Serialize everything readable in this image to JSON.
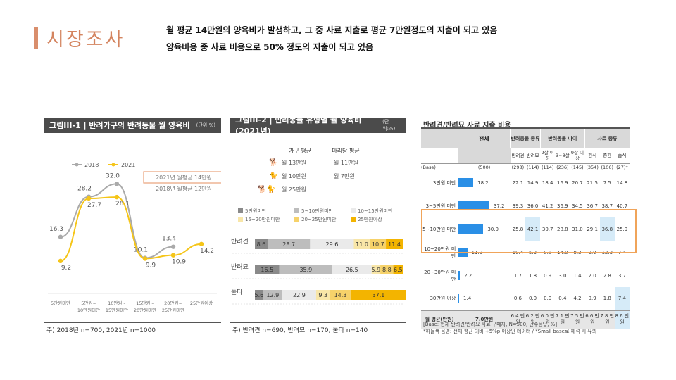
{
  "header": {
    "title": "시장조사",
    "line1": "월 평균 14만원의 양육비가 발생하고, 그 중 사료 지출로 평균 7만원정도의 지출이 되고 있음",
    "line2": "양육비용 중 사료 비용으로 50% 정도의 지출이 되고 있음"
  },
  "colors": {
    "accent": "#d4845f",
    "s2018": "#aaaaaa",
    "s2021": "#f5c518",
    "highlight": "#f0a45a",
    "bar_blue": "#2a8fe6"
  },
  "chart1": {
    "header": "그림III-1 | 반려가구의 반려동물 월 양육비",
    "unit": "(단위:%)",
    "legend": [
      "2018",
      "2021"
    ],
    "callout1": "2021년 월평균 14만원",
    "callout2": "2018년 월평균 12만원",
    "footnote": "주) 2018년 n=700, 2021년 n=1000"
  },
  "chart_data": [
    {
      "type": "line",
      "categories": [
        "5만원미만",
        "5만원~10만원미만",
        "10만원~15만원미만",
        "15만원~20만원미만",
        "20만원~25만원미만",
        "25만원이상"
      ],
      "series": [
        {
          "name": "2018",
          "values": [
            16.3,
            28.2,
            32.0,
            10.1,
            13.4,
            null
          ]
        },
        {
          "name": "2021",
          "values": [
            9.2,
            27.7,
            28.1,
            9.9,
            10.9,
            14.2
          ]
        }
      ]
    },
    {
      "type": "bar",
      "stacked": true,
      "orientation": "horizontal",
      "categories": [
        "반려견",
        "반려묘",
        "둘다"
      ],
      "series": [
        {
          "name": "5만원미만",
          "values": [
            8.6,
            16.5,
            5.6
          ]
        },
        {
          "name": "5~10만원미만",
          "values": [
            28.7,
            35.9,
            12.9
          ]
        },
        {
          "name": "10~15만원미만",
          "values": [
            29.6,
            26.5,
            22.9
          ]
        },
        {
          "name": "15~20만원미만",
          "values": [
            11.0,
            5.9,
            9.3
          ]
        },
        {
          "name": "20~25만원미만",
          "values": [
            10.7,
            8.8,
            14.3
          ]
        },
        {
          "name": "25만원이상",
          "values": [
            11.4,
            6.5,
            37.1
          ]
        }
      ]
    }
  ],
  "chart2": {
    "header": "그림III-2 | 반려동물 유형별 월 양육비(2021년)",
    "unit": "(단위:%)",
    "col1": "가구 평균",
    "col2": "마리당 평균",
    "rows": [
      {
        "label": "월 13만원",
        "per": "월 11만원"
      },
      {
        "label": "월 10만원",
        "per": "월 7만원"
      },
      {
        "label": "월 25만원",
        "per": ""
      }
    ],
    "legend": [
      "5만원미만",
      "5~10만원미만",
      "10~15만원미만",
      "15~20만원미만",
      "20~25만원미만",
      "25만원이상"
    ],
    "bar_labels": [
      [
        "8.6",
        "28.7",
        "29.6",
        "11.0",
        "10.7",
        "11.4"
      ],
      [
        "16.5",
        "35.9",
        "26.5",
        "5.9",
        "8.8",
        "6.5"
      ],
      [
        "5.6",
        "12.9",
        "22.9",
        "9.3",
        "14.3",
        "37.1"
      ]
    ],
    "footnote": "주) 반려견 n=690, 반려묘 n=170, 둘다 n=140"
  },
  "table": {
    "title": "반려견/반려묘 사료 지출 비용",
    "head_total": "전체",
    "head_g1": "반려동물 종류",
    "head_g2": "반려동물 나이",
    "head_g3": "사료 종류",
    "sub": [
      "반려견",
      "반려묘",
      "2살 이하",
      "3~8살",
      "9살 이상",
      "건식",
      "중간",
      "습식"
    ],
    "base_label": "(Base)",
    "base_total": "(500)",
    "base": [
      "(298)",
      "(114)",
      "(114)",
      "(236)",
      "(145)",
      "(354)",
      "(106)",
      "(27)*"
    ],
    "rows": [
      {
        "label": "3만원 미만",
        "total": 18.2,
        "vals": [
          "22.1",
          "14.9",
          "18.4",
          "16.9",
          "20.7",
          "21.5",
          "7.5",
          "14.8"
        ]
      },
      {
        "label": "3~5만원 미만",
        "total": 37.2,
        "vals": [
          "39.3",
          "36.0",
          "41.2",
          "36.9",
          "34.5",
          "36.7",
          "38.7",
          "40.7"
        ]
      },
      {
        "label": "5~10만원 미만",
        "total": 30.0,
        "vals": [
          "25.8",
          "42.1",
          "30.7",
          "28.8",
          "31.0",
          "29.1",
          "36.8",
          "25.9"
        ]
      },
      {
        "label": "10~20만원 미만",
        "total": 11.0,
        "vals": [
          "10.4",
          "5.3",
          "8.8",
          "14.0",
          "8.3",
          "9.9",
          "12.3",
          "7.4"
        ]
      },
      {
        "label": "20~30만원 미만",
        "total": 2.2,
        "vals": [
          "1.7",
          "1.8",
          "0.9",
          "3.0",
          "1.4",
          "2.0",
          "2.8",
          "3.7"
        ]
      },
      {
        "label": "30만원 이상",
        "total": 1.4,
        "vals": [
          "0.6",
          "0.0",
          "0.0",
          "0.4",
          "4.2",
          "0.9",
          "1.8",
          "7.4"
        ]
      }
    ],
    "avg_label": "월 평균(만원)",
    "avg_total": "7.0만원",
    "avg": [
      "6.4 만원",
      "6.2 만원",
      "6.0 만원",
      "7.1 만원",
      "7.5 만원",
      "6.6 만원",
      "7.8 만원",
      "8.6 만원"
    ],
    "foot1": "[Base: 현재 반려견/반려묘 사료 구매자, N=500, 단수응답, %]",
    "foot2": "*하늘색 음영: 전체 평균 대비 +5%p 이상인 데이터 / *Small base로 해석 시 유의"
  }
}
